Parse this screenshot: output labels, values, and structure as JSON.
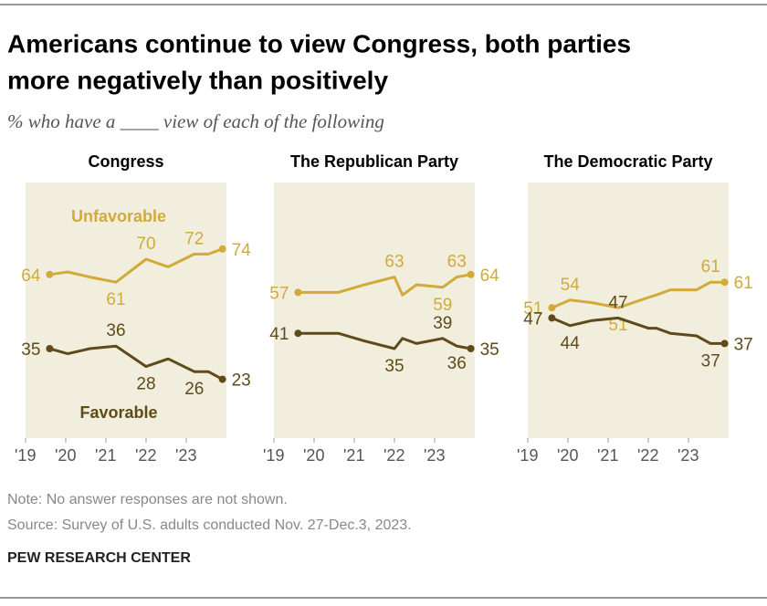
{
  "title": [
    "Americans continue to view Congress, both parties",
    "more negatively than positively"
  ],
  "subtitle": "% who have a ____ view of each of the following",
  "chart_data": [
    {
      "type": "line",
      "title": "Congress",
      "x": [
        2019.6,
        2020.05,
        2020.6,
        2021.25,
        2022.0,
        2022.55,
        2023.2,
        2023.55,
        2023.9
      ],
      "xlim": [
        2019,
        2024
      ],
      "xticks": [
        {
          "value": 2019,
          "label": "'19"
        },
        {
          "value": 2020,
          "label": "'20"
        },
        {
          "value": 2021,
          "label": "'21"
        },
        {
          "value": 2022,
          "label": "'22"
        },
        {
          "value": 2023,
          "label": "'23"
        }
      ],
      "ylim": [
        0,
        100
      ],
      "series": [
        {
          "name": "Unfavorable",
          "color": "#d2aa3a",
          "values": [
            64,
            65,
            63,
            61,
            70,
            67,
            72,
            72,
            74
          ],
          "value_labels": [
            "64",
            null,
            null,
            "61",
            "70",
            null,
            "72",
            null,
            "74"
          ]
        },
        {
          "name": "Favorable",
          "color": "#5f4a1c",
          "values": [
            35,
            33,
            35,
            36,
            28,
            31,
            26,
            26,
            23
          ],
          "value_labels": [
            "35",
            null,
            null,
            "36",
            "28",
            null,
            "26",
            null,
            "23"
          ]
        }
      ]
    },
    {
      "type": "line",
      "title": "The Republican Party",
      "x": [
        2019.6,
        2020.05,
        2020.6,
        2021.25,
        2022.0,
        2022.2,
        2022.55,
        2023.2,
        2023.55,
        2023.9
      ],
      "xlim": [
        2019,
        2024
      ],
      "xticks": [
        {
          "value": 2019,
          "label": "'19"
        },
        {
          "value": 2020,
          "label": "'20"
        },
        {
          "value": 2021,
          "label": "'21"
        },
        {
          "value": 2022,
          "label": "'22"
        },
        {
          "value": 2023,
          "label": "'23"
        }
      ],
      "ylim": [
        0,
        100
      ],
      "series": [
        {
          "color": "#d2aa3a",
          "values": [
            57,
            57,
            57,
            60,
            63,
            56,
            60,
            59,
            63,
            64
          ],
          "value_labels": [
            "57",
            null,
            null,
            null,
            "63",
            null,
            null,
            "59",
            "63",
            "64"
          ]
        },
        {
          "color": "#5f4a1c",
          "values": [
            41,
            41,
            41,
            38,
            35,
            39,
            37,
            39,
            36,
            35
          ],
          "value_labels": [
            "41",
            null,
            null,
            null,
            "35",
            null,
            null,
            "39",
            "36",
            "35"
          ]
        }
      ]
    },
    {
      "type": "line",
      "title": "The Democratic Party",
      "x": [
        2019.6,
        2020.05,
        2020.6,
        2021.25,
        2022.0,
        2022.2,
        2022.55,
        2023.2,
        2023.55,
        2023.9
      ],
      "xlim": [
        2019,
        2024
      ],
      "xticks": [
        {
          "value": 2019,
          "label": "'19"
        },
        {
          "value": 2020,
          "label": "'20"
        },
        {
          "value": 2021,
          "label": "'21"
        },
        {
          "value": 2022,
          "label": "'22"
        },
        {
          "value": 2023,
          "label": "'23"
        }
      ],
      "ylim": [
        0,
        100
      ],
      "series": [
        {
          "color": "#d2aa3a",
          "values": [
            51,
            54,
            53,
            51,
            55,
            56,
            58,
            58,
            61,
            61
          ],
          "value_labels": [
            "51",
            "54",
            null,
            "51",
            null,
            null,
            null,
            null,
            "61",
            "61"
          ]
        },
        {
          "color": "#5f4a1c",
          "values": [
            47,
            44,
            46,
            47,
            43,
            43,
            41,
            40,
            37,
            37
          ],
          "value_labels": [
            "47",
            "44",
            null,
            "47",
            null,
            null,
            null,
            null,
            "37",
            "37"
          ]
        }
      ]
    }
  ],
  "note": "Note: No answer responses are not shown.",
  "source": "Source: Survey of U.S. adults conducted Nov. 27-Dec.3, 2023.",
  "footer": "PEW RESEARCH CENTER"
}
